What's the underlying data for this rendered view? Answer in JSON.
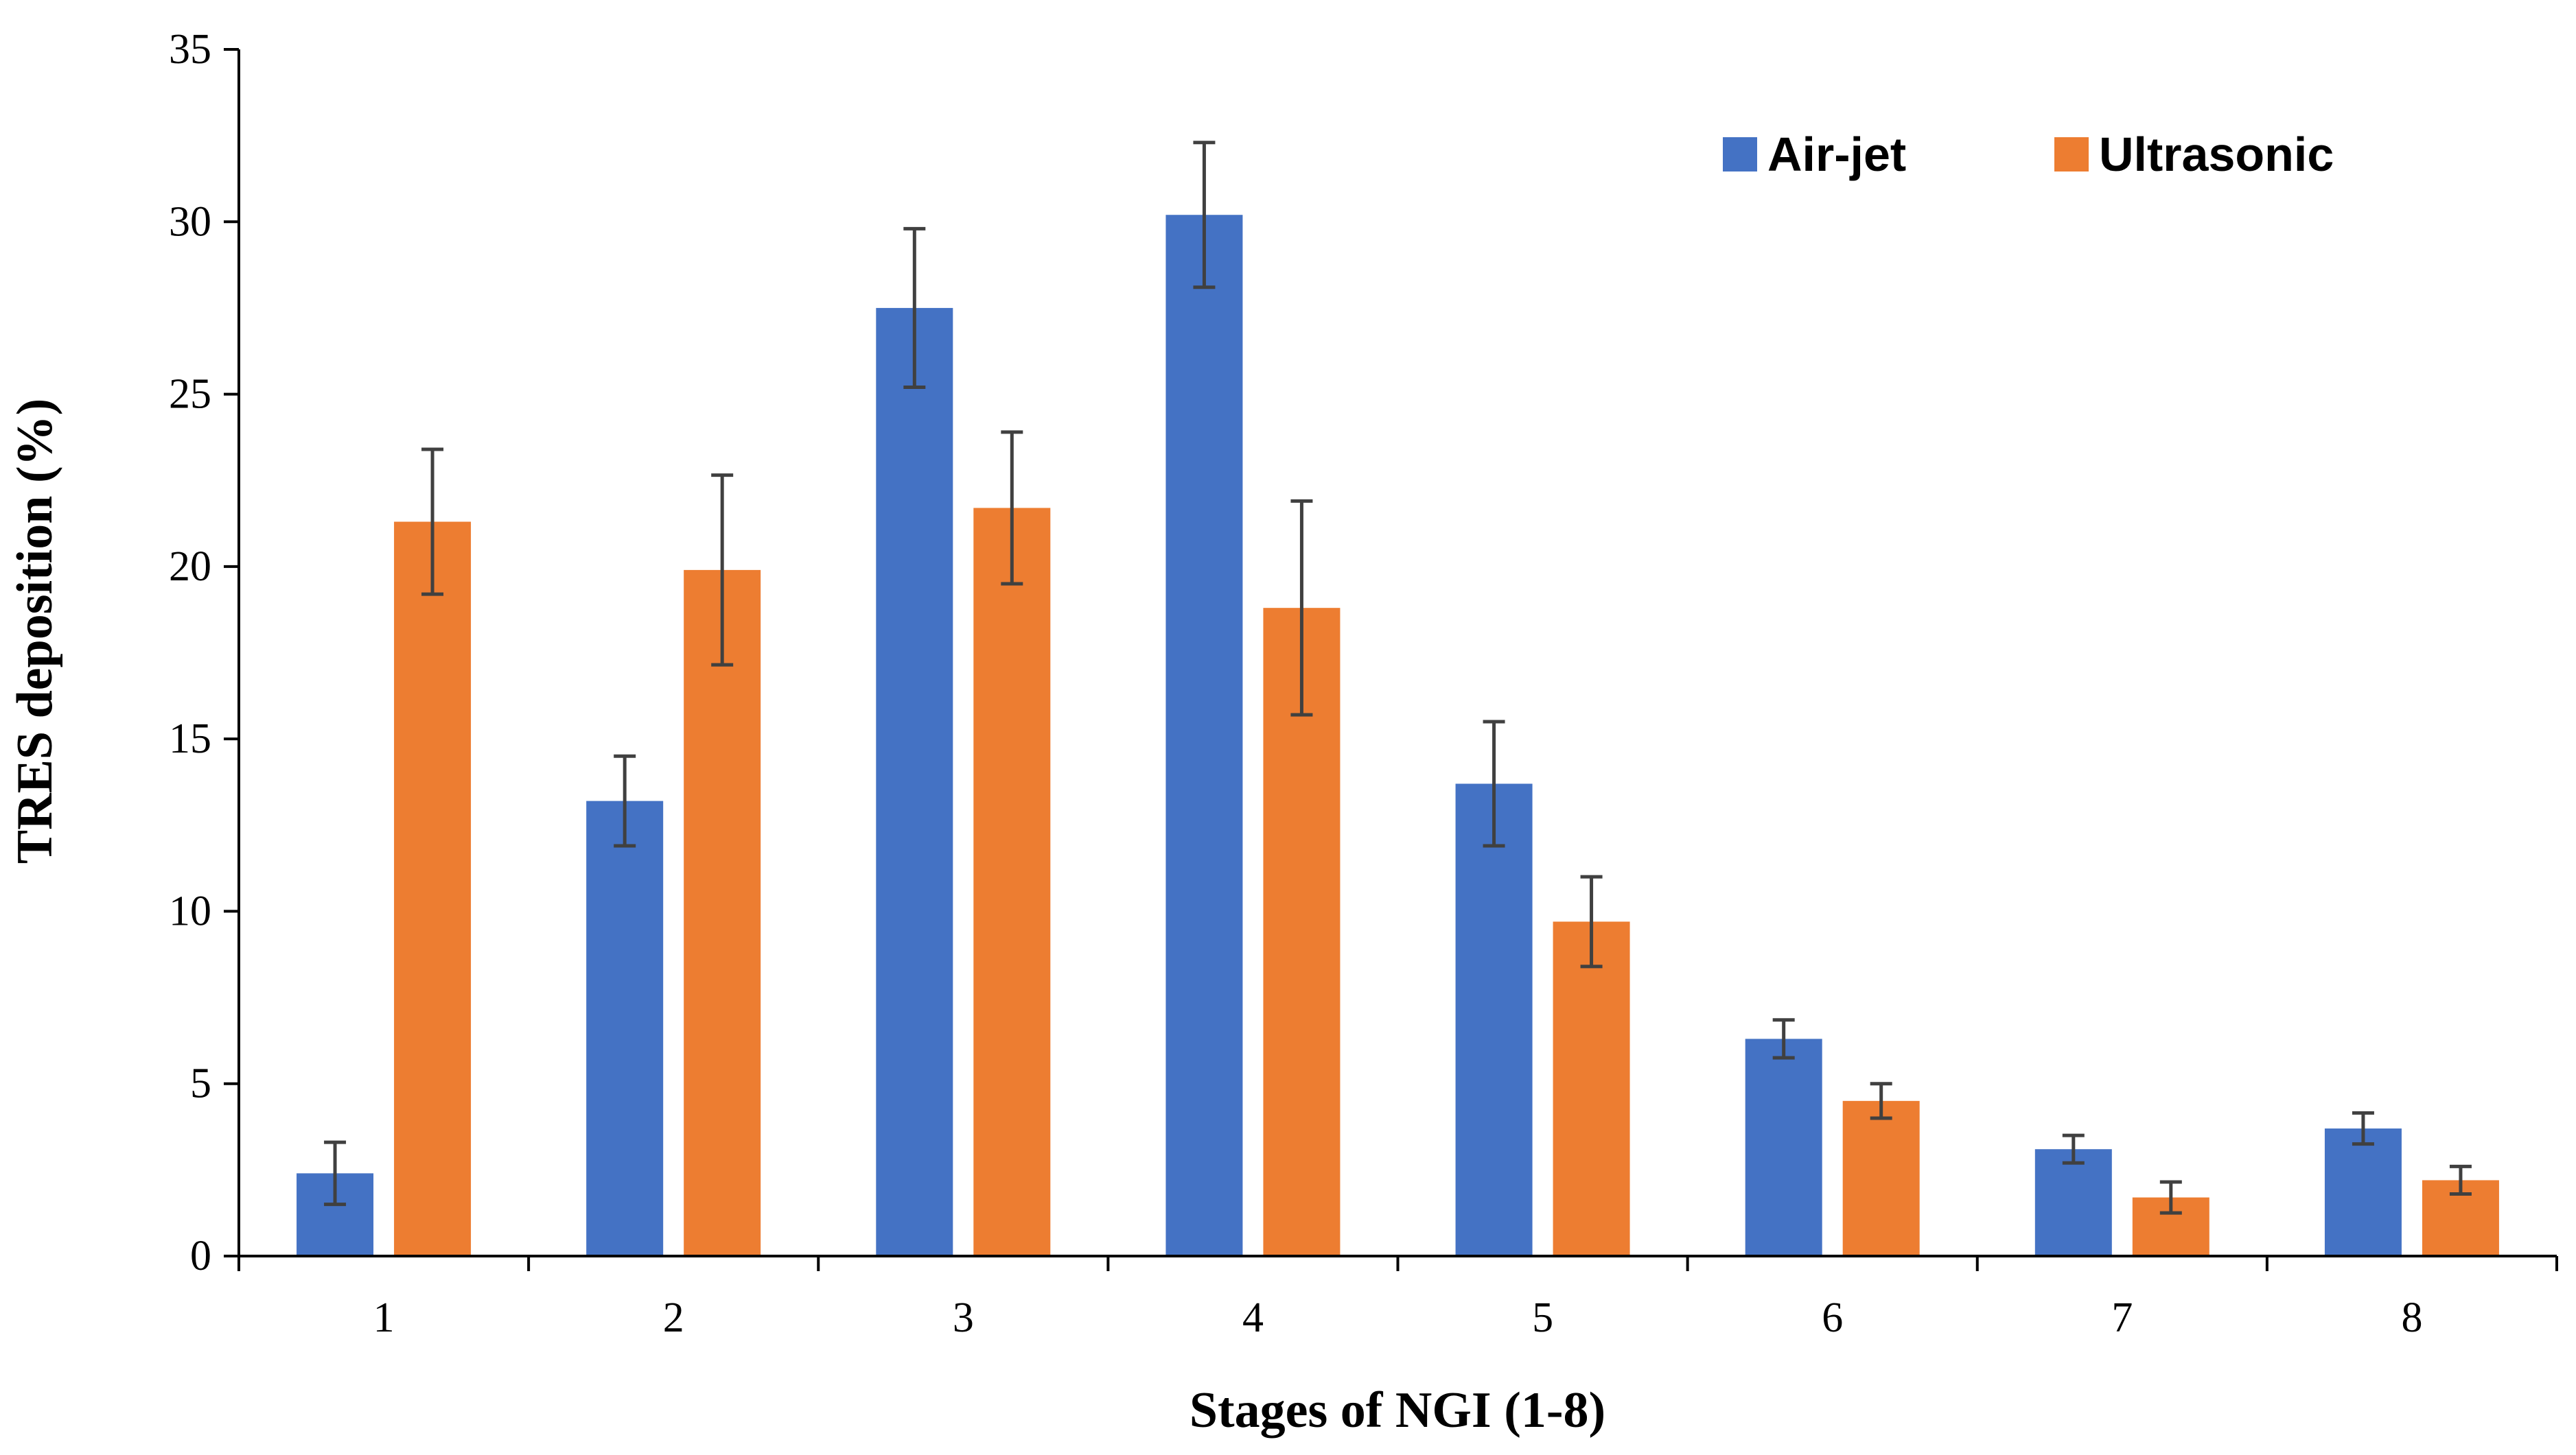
{
  "chart_data": {
    "type": "bar",
    "title": "",
    "xlabel": "Stages of NGI (1-8)",
    "ylabel": "TRES deposition (%)",
    "categories": [
      "1",
      "2",
      "3",
      "4",
      "5",
      "6",
      "7",
      "8"
    ],
    "ylim": [
      0,
      35
    ],
    "yticks": [
      "0",
      "5",
      "10",
      "15",
      "20",
      "25",
      "30",
      "35"
    ],
    "legend_position": "top-right",
    "series": [
      {
        "name": "Air-jet",
        "color": "#4472C4",
        "values": [
          2.4,
          13.2,
          27.5,
          30.2,
          13.7,
          6.3,
          3.1,
          3.7
        ],
        "errors": [
          0.9,
          1.3,
          2.3,
          2.1,
          1.8,
          0.55,
          0.4,
          0.45
        ]
      },
      {
        "name": "Ultrasonic",
        "color": "#ED7D31",
        "values": [
          21.3,
          19.9,
          21.7,
          18.8,
          9.7,
          4.5,
          1.7,
          2.2
        ],
        "errors": [
          2.1,
          2.75,
          2.2,
          3.1,
          1.3,
          0.5,
          0.45,
          0.4
        ]
      }
    ],
    "errorbar_color": "#404040",
    "axis_color": "#000000"
  }
}
